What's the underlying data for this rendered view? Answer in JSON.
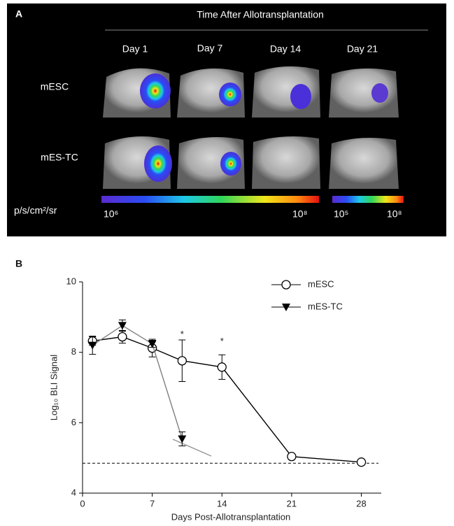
{
  "panel_a": {
    "label": "A",
    "title": "Time After Allotransplantation",
    "columns": [
      "Day 1",
      "Day 7",
      "Day 14",
      "Day 21"
    ],
    "rows": [
      "mESC",
      "mES-TC"
    ],
    "unit": "p/s/cm²/sr",
    "scale_1": [
      "10⁶",
      "10⁸"
    ],
    "scale_2": [
      "10⁵",
      "10⁸"
    ]
  },
  "chart_data": {
    "type": "line",
    "panel_label": "B",
    "x_label": "Days Post-Allotransplantation",
    "y_label": "Log₁₀ BLI Signal",
    "xlim": [
      0,
      30
    ],
    "xticks": [
      0,
      7,
      14,
      21,
      28
    ],
    "ylim": [
      4,
      10
    ],
    "yticks": [
      4,
      6,
      8,
      10
    ],
    "reference_line": 4.85,
    "series": [
      {
        "name": "mESC",
        "color": "#000000",
        "line_color": "#000000",
        "marker": "circle",
        "x": [
          1,
          4,
          7,
          10,
          14,
          21,
          28
        ],
        "values": [
          8.32,
          8.44,
          8.12,
          7.76,
          7.58,
          5.04,
          4.88
        ],
        "errors": [
          0.12,
          0.18,
          0.25,
          0.59,
          0.35,
          null,
          null
        ]
      },
      {
        "name": "mES-TC",
        "color": "#000000",
        "line_color": "#808080",
        "marker": "triangle",
        "x": [
          1,
          4,
          7,
          10
        ],
        "values": [
          8.2,
          8.76,
          8.24,
          5.54
        ],
        "errors": [
          0.26,
          0.16,
          0.1,
          0.2
        ]
      }
    ],
    "annotations": [
      {
        "x": 10,
        "y": 8.5,
        "text": "*"
      },
      {
        "x": 14,
        "y": 8.3,
        "text": "*"
      }
    ]
  }
}
